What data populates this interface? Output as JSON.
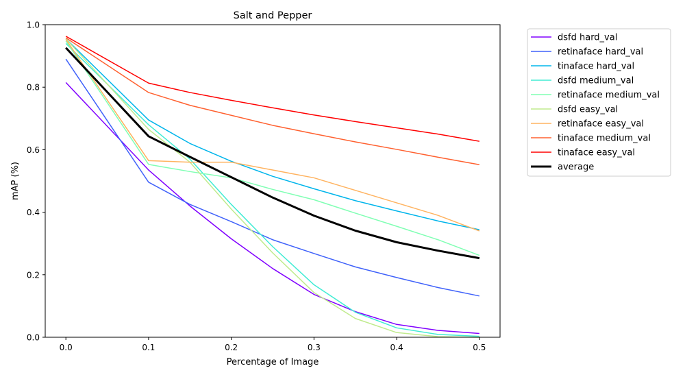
{
  "chart_data": {
    "type": "line",
    "title": "Salt and Pepper",
    "xlabel": "Percentage of Image",
    "ylabel": "mAP (%)",
    "xlim": [
      -0.025,
      0.525
    ],
    "ylim": [
      0,
      1.0
    ],
    "xticks": [
      0.0,
      0.1,
      0.2,
      0.3,
      0.4,
      0.5
    ],
    "xtick_labels": [
      "0.0",
      "0.1",
      "0.2",
      "0.3",
      "0.4",
      "0.5"
    ],
    "yticks": [
      0.0,
      0.2,
      0.4,
      0.6,
      0.8,
      1.0
    ],
    "ytick_labels": [
      "0.0",
      "0.2",
      "0.4",
      "0.6",
      "0.8",
      "1.0"
    ],
    "grid": false,
    "legend_position": "outside right, top",
    "x": [
      0.0,
      0.1,
      0.15,
      0.2,
      0.25,
      0.3,
      0.35,
      0.4,
      0.45,
      0.5
    ],
    "series": [
      {
        "name": "dsfd hard_val",
        "color": "#8000ff",
        "values": [
          0.815,
          0.535,
          0.42,
          0.315,
          0.22,
          0.137,
          0.082,
          0.041,
          0.022,
          0.012
        ]
      },
      {
        "name": "retinaface hard_val",
        "color": "#4062fa",
        "values": [
          0.89,
          0.496,
          0.425,
          0.37,
          0.312,
          0.268,
          0.225,
          0.191,
          0.159,
          0.132
        ]
      },
      {
        "name": "tinaface hard_val",
        "color": "#00b5eb",
        "values": [
          0.955,
          0.695,
          0.62,
          0.563,
          0.515,
          0.475,
          0.437,
          0.404,
          0.372,
          0.344
        ]
      },
      {
        "name": "dsfd medium_val",
        "color": "#40ecd4",
        "values": [
          0.94,
          0.68,
          0.57,
          0.425,
          0.29,
          0.168,
          0.08,
          0.03,
          0.009,
          0.003
        ]
      },
      {
        "name": "retinaface medium_val",
        "color": "#80ffb4",
        "values": [
          0.948,
          0.553,
          0.53,
          0.51,
          0.473,
          0.44,
          0.397,
          0.355,
          0.312,
          0.262
        ]
      },
      {
        "name": "dsfd easy_val",
        "color": "#c0eb8d",
        "values": [
          0.955,
          0.665,
          0.56,
          0.41,
          0.27,
          0.143,
          0.06,
          0.015,
          0.002,
          0.0
        ]
      },
      {
        "name": "retinaface easy_val",
        "color": "#ffb360",
        "values": [
          0.953,
          0.565,
          0.56,
          0.56,
          0.535,
          0.51,
          0.47,
          0.43,
          0.39,
          0.34
        ]
      },
      {
        "name": "tinaface medium_val",
        "color": "#ff6130",
        "values": [
          0.958,
          0.783,
          0.742,
          0.71,
          0.678,
          0.651,
          0.625,
          0.601,
          0.576,
          0.552
        ]
      },
      {
        "name": "tinaface easy_val",
        "color": "#ff0000",
        "values": [
          0.963,
          0.813,
          0.783,
          0.758,
          0.734,
          0.711,
          0.69,
          0.67,
          0.65,
          0.627
        ]
      },
      {
        "name": "average",
        "color": "#000000",
        "bold": true,
        "values": [
          0.926,
          0.643,
          0.577,
          0.512,
          0.447,
          0.389,
          0.341,
          0.304,
          0.277,
          0.253
        ]
      }
    ]
  }
}
